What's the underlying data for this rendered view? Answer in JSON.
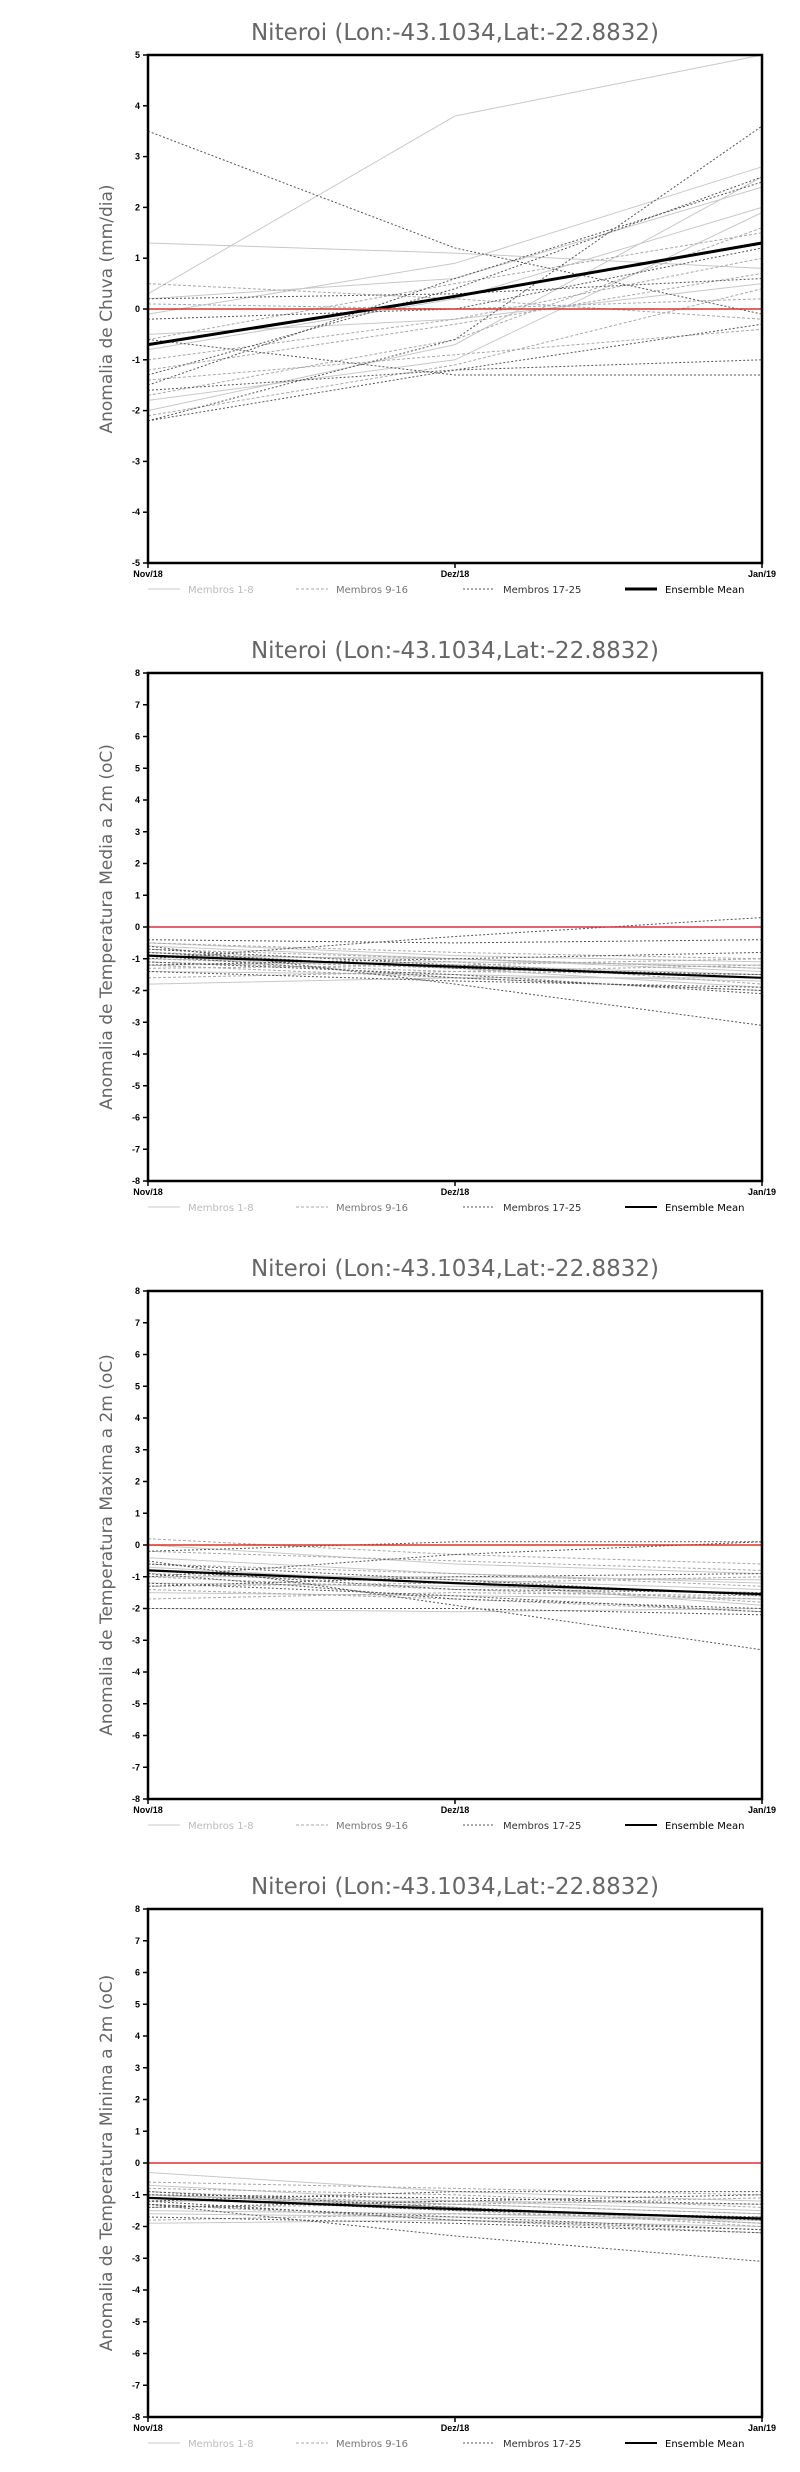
{
  "chart_data": [
    {
      "type": "line",
      "title": "Niteroi (Lon:-43.1034,Lat:-22.8832)",
      "ylabel": "Anomalia de Chuva (mm/dia)",
      "xlabel": "",
      "categories": [
        "Nov/18",
        "Dez/18",
        "Jan/19"
      ],
      "ylim": [
        -5,
        5
      ],
      "yticks": [
        "-5",
        "-4",
        "-3",
        "-2",
        "-1",
        "0",
        "1",
        "2",
        "3",
        "4",
        "5"
      ],
      "grid": false,
      "legend_position": "bottom",
      "legend": [
        "Membros 1-8",
        "Membros 9-16",
        "Membros 17-25",
        "Ensemble Mean"
      ],
      "series": [
        {
          "group": "Membros 1-8",
          "values": [
            0.3,
            3.8,
            5.0
          ]
        },
        {
          "group": "Membros 1-8",
          "values": [
            1.3,
            1.1,
            0.8
          ]
        },
        {
          "group": "Membros 1-8",
          "values": [
            -0.8,
            0.2,
            2.0
          ]
        },
        {
          "group": "Membros 1-8",
          "values": [
            -2.0,
            -0.7,
            2.6
          ]
        },
        {
          "group": "Membros 1-8",
          "values": [
            0.2,
            0.6,
            2.4
          ]
        },
        {
          "group": "Membros 1-8",
          "values": [
            -0.5,
            -0.2,
            0.5
          ]
        },
        {
          "group": "Membros 1-8",
          "values": [
            -1.8,
            -1.0,
            1.9
          ]
        },
        {
          "group": "Membros 1-8",
          "values": [
            -0.1,
            0.9,
            2.8
          ]
        },
        {
          "group": "Membros 9-16",
          "values": [
            -1.0,
            -0.2,
            1.0
          ]
        },
        {
          "group": "Membros 9-16",
          "values": [
            0.5,
            0.2,
            -0.2
          ]
        },
        {
          "group": "Membros 9-16",
          "values": [
            -1.7,
            -0.6,
            1.6
          ]
        },
        {
          "group": "Membros 9-16",
          "values": [
            -1.2,
            -0.3,
            0.7
          ]
        },
        {
          "group": "Membros 9-16",
          "values": [
            -0.6,
            0.5,
            1.5
          ]
        },
        {
          "group": "Membros 9-16",
          "values": [
            -2.1,
            -1.1,
            0.4
          ]
        },
        {
          "group": "Membros 9-16",
          "values": [
            -1.4,
            -0.9,
            -0.4
          ]
        },
        {
          "group": "Membros 9-16",
          "values": [
            0.1,
            0.0,
            0.2
          ]
        },
        {
          "group": "Membros 17-25",
          "values": [
            3.5,
            1.2,
            -0.1
          ]
        },
        {
          "group": "Membros 17-25",
          "values": [
            -2.2,
            -0.6,
            3.6
          ]
        },
        {
          "group": "Membros 17-25",
          "values": [
            -1.3,
            0.4,
            2.6
          ]
        },
        {
          "group": "Membros 17-25",
          "values": [
            0.2,
            0.3,
            0.6
          ]
        },
        {
          "group": "Membros 17-25",
          "values": [
            -1.6,
            -1.2,
            -1.0
          ]
        },
        {
          "group": "Membros 17-25",
          "values": [
            -1.5,
            0.6,
            2.5
          ]
        },
        {
          "group": "Membros 17-25",
          "values": [
            -0.2,
            0.0,
            1.2
          ]
        },
        {
          "group": "Membros 17-25",
          "values": [
            -2.2,
            -1.2,
            -0.3
          ]
        },
        {
          "group": "Membros 17-25",
          "values": [
            -0.6,
            -1.3,
            -1.3
          ]
        },
        {
          "group": "Ensemble Mean",
          "values": [
            -0.7,
            0.25,
            1.3
          ]
        }
      ],
      "reference_line": {
        "value": 0,
        "color": "#e03030"
      }
    },
    {
      "type": "line",
      "title": "Niteroi (Lon:-43.1034,Lat:-22.8832)",
      "ylabel": "Anomalia de Temperatura Media a 2m (oC)",
      "xlabel": "",
      "categories": [
        "Nov/18",
        "Dez/18",
        "Jan/19"
      ],
      "ylim": [
        -8,
        8
      ],
      "yticks": [
        "-8",
        "-7",
        "-6",
        "-5",
        "-4",
        "-3",
        "-2",
        "-1",
        "0",
        "1",
        "2",
        "3",
        "4",
        "5",
        "6",
        "7",
        "8"
      ],
      "grid": false,
      "legend_position": "bottom",
      "legend": [
        "Membros 1-8",
        "Membros 9-16",
        "Membros 17-25",
        "Ensemble Mean"
      ],
      "series": [
        {
          "group": "Membros 1-8",
          "values": [
            -0.6,
            -1.0,
            -1.3
          ]
        },
        {
          "group": "Membros 1-8",
          "values": [
            -1.0,
            -1.2,
            -1.5
          ]
        },
        {
          "group": "Membros 1-8",
          "values": [
            -1.8,
            -1.6,
            -1.6
          ]
        },
        {
          "group": "Membros 1-8",
          "values": [
            -0.8,
            -1.3,
            -1.9
          ]
        },
        {
          "group": "Membros 1-8",
          "values": [
            -1.2,
            -1.1,
            -1.2
          ]
        },
        {
          "group": "Membros 1-8",
          "values": [
            -0.5,
            -0.9,
            -1.1
          ]
        },
        {
          "group": "Membros 1-8",
          "values": [
            -1.4,
            -1.5,
            -1.7
          ]
        },
        {
          "group": "Membros 1-8",
          "values": [
            -0.9,
            -1.0,
            -1.4
          ]
        },
        {
          "group": "Membros 9-16",
          "values": [
            -0.7,
            -1.0,
            -1.3
          ]
        },
        {
          "group": "Membros 9-16",
          "values": [
            -1.6,
            -1.4,
            -1.5
          ]
        },
        {
          "group": "Membros 9-16",
          "values": [
            -1.0,
            -1.3,
            -1.6
          ]
        },
        {
          "group": "Membros 9-16",
          "values": [
            -1.3,
            -1.2,
            -1.0
          ]
        },
        {
          "group": "Membros 9-16",
          "values": [
            -0.8,
            -1.1,
            -1.8
          ]
        },
        {
          "group": "Membros 9-16",
          "values": [
            -1.1,
            -1.4,
            -1.2
          ]
        },
        {
          "group": "Membros 9-16",
          "values": [
            -0.5,
            -0.8,
            -1.0
          ]
        },
        {
          "group": "Membros 9-16",
          "values": [
            -1.2,
            -1.6,
            -2.0
          ]
        },
        {
          "group": "Membros 17-25",
          "values": [
            -0.6,
            -1.8,
            -3.1
          ]
        },
        {
          "group": "Membros 17-25",
          "values": [
            -1.0,
            -0.3,
            0.3
          ]
        },
        {
          "group": "Membros 17-25",
          "values": [
            -0.4,
            -0.5,
            -0.4
          ]
        },
        {
          "group": "Membros 17-25",
          "values": [
            -1.1,
            -1.5,
            -2.1
          ]
        },
        {
          "group": "Membros 17-25",
          "values": [
            -0.8,
            -1.3,
            -1.5
          ]
        },
        {
          "group": "Membros 17-25",
          "values": [
            -1.4,
            -1.7,
            -1.9
          ]
        },
        {
          "group": "Membros 17-25",
          "values": [
            -0.7,
            -1.2,
            -1.6
          ]
        },
        {
          "group": "Membros 17-25",
          "values": [
            -1.2,
            -1.0,
            -0.8
          ]
        },
        {
          "group": "Membros 17-25",
          "values": [
            -0.9,
            -1.6,
            -2.0
          ]
        },
        {
          "group": "Ensemble Mean",
          "values": [
            -0.9,
            -1.25,
            -1.6
          ]
        }
      ],
      "reference_line": {
        "value": 0,
        "color": "#e03030"
      }
    },
    {
      "type": "line",
      "title": "Niteroi (Lon:-43.1034,Lat:-22.8832)",
      "ylabel": "Anomalia de Temperatura Maxima a 2m (oC)",
      "xlabel": "",
      "categories": [
        "Nov/18",
        "Dez/18",
        "Jan/19"
      ],
      "ylim": [
        -8,
        8
      ],
      "yticks": [
        "-8",
        "-7",
        "-6",
        "-5",
        "-4",
        "-3",
        "-2",
        "-1",
        "0",
        "1",
        "2",
        "3",
        "4",
        "5",
        "6",
        "7",
        "8"
      ],
      "grid": false,
      "legend_position": "bottom",
      "legend": [
        "Membros 1-8",
        "Membros 9-16",
        "Membros 17-25",
        "Ensemble Mean"
      ],
      "series": [
        {
          "group": "Membros 1-8",
          "values": [
            -0.4,
            -0.9,
            -1.2
          ]
        },
        {
          "group": "Membros 1-8",
          "values": [
            -1.2,
            -1.3,
            -1.5
          ]
        },
        {
          "group": "Membros 1-8",
          "values": [
            -2.0,
            -2.1,
            -2.0
          ]
        },
        {
          "group": "Membros 1-8",
          "values": [
            -0.7,
            -1.2,
            -1.9
          ]
        },
        {
          "group": "Membros 1-8",
          "values": [
            -1.0,
            -1.0,
            -1.1
          ]
        },
        {
          "group": "Membros 1-8",
          "values": [
            0.0,
            -0.6,
            -0.9
          ]
        },
        {
          "group": "Membros 1-8",
          "values": [
            -1.5,
            -1.6,
            -1.7
          ]
        },
        {
          "group": "Membros 1-8",
          "values": [
            -0.8,
            -1.1,
            -1.4
          ]
        },
        {
          "group": "Membros 9-16",
          "values": [
            -0.6,
            -0.9,
            -1.3
          ]
        },
        {
          "group": "Membros 9-16",
          "values": [
            -1.7,
            -1.5,
            -1.6
          ]
        },
        {
          "group": "Membros 9-16",
          "values": [
            -1.0,
            -1.4,
            -1.7
          ]
        },
        {
          "group": "Membros 9-16",
          "values": [
            -1.3,
            -1.2,
            -1.0
          ]
        },
        {
          "group": "Membros 9-16",
          "values": [
            -0.9,
            -1.2,
            -1.8
          ]
        },
        {
          "group": "Membros 9-16",
          "values": [
            -0.2,
            -0.5,
            -0.8
          ]
        },
        {
          "group": "Membros 9-16",
          "values": [
            -1.4,
            -1.7,
            -2.1
          ]
        },
        {
          "group": "Membros 9-16",
          "values": [
            0.2,
            -0.3,
            -0.6
          ]
        },
        {
          "group": "Membros 17-25",
          "values": [
            -0.5,
            -1.9,
            -3.3
          ]
        },
        {
          "group": "Membros 17-25",
          "values": [
            -1.0,
            -0.3,
            0.1
          ]
        },
        {
          "group": "Membros 17-25",
          "values": [
            -0.2,
            0.1,
            0.1
          ]
        },
        {
          "group": "Membros 17-25",
          "values": [
            -1.2,
            -1.6,
            -2.1
          ]
        },
        {
          "group": "Membros 17-25",
          "values": [
            -0.8,
            -1.4,
            -1.5
          ]
        },
        {
          "group": "Membros 17-25",
          "values": [
            -2.0,
            -2.0,
            -2.2
          ]
        },
        {
          "group": "Membros 17-25",
          "values": [
            -0.6,
            -1.1,
            -1.6
          ]
        },
        {
          "group": "Membros 17-25",
          "values": [
            -1.3,
            -1.0,
            -0.9
          ]
        },
        {
          "group": "Membros 17-25",
          "values": [
            -0.9,
            -1.7,
            -2.0
          ]
        },
        {
          "group": "Ensemble Mean",
          "values": [
            -0.8,
            -1.2,
            -1.55
          ]
        }
      ],
      "reference_line": {
        "value": 0,
        "color": "#e03030"
      }
    },
    {
      "type": "line",
      "title": "Niteroi (Lon:-43.1034,Lat:-22.8832)",
      "ylabel": "Anomalia de Temperatura Minima a 2m (oC)",
      "xlabel": "",
      "categories": [
        "Nov/18",
        "Dez/18",
        "Jan/19"
      ],
      "ylim": [
        -8,
        8
      ],
      "yticks": [
        "-8",
        "-7",
        "-6",
        "-5",
        "-4",
        "-3",
        "-2",
        "-1",
        "0",
        "1",
        "2",
        "3",
        "4",
        "5",
        "6",
        "7",
        "8"
      ],
      "grid": false,
      "legend_position": "bottom",
      "legend": [
        "Membros 1-8",
        "Membros 9-16",
        "Membros 17-25",
        "Ensemble Mean"
      ],
      "series": [
        {
          "group": "Membros 1-8",
          "values": [
            -0.7,
            -1.2,
            -1.5
          ]
        },
        {
          "group": "Membros 1-8",
          "values": [
            -1.5,
            -1.6,
            -1.8
          ]
        },
        {
          "group": "Membros 1-8",
          "values": [
            -1.9,
            -1.8,
            -2.0
          ]
        },
        {
          "group": "Membros 1-8",
          "values": [
            -1.0,
            -1.4,
            -1.9
          ]
        },
        {
          "group": "Membros 1-8",
          "values": [
            -1.2,
            -1.2,
            -1.3
          ]
        },
        {
          "group": "Membros 1-8",
          "values": [
            -0.3,
            -0.9,
            -1.2
          ]
        },
        {
          "group": "Membros 1-8",
          "values": [
            -1.6,
            -1.7,
            -1.8
          ]
        },
        {
          "group": "Membros 1-8",
          "values": [
            -1.0,
            -1.3,
            -1.6
          ]
        },
        {
          "group": "Membros 9-16",
          "values": [
            -0.9,
            -1.3,
            -1.6
          ]
        },
        {
          "group": "Membros 9-16",
          "values": [
            -1.8,
            -1.6,
            -1.7
          ]
        },
        {
          "group": "Membros 9-16",
          "values": [
            -1.1,
            -1.5,
            -1.9
          ]
        },
        {
          "group": "Membros 9-16",
          "values": [
            -1.4,
            -1.3,
            -1.1
          ]
        },
        {
          "group": "Membros 9-16",
          "values": [
            -1.0,
            -1.4,
            -2.0
          ]
        },
        {
          "group": "Membros 9-16",
          "values": [
            -0.6,
            -0.8,
            -1.0
          ]
        },
        {
          "group": "Membros 9-16",
          "values": [
            -1.3,
            -1.8,
            -2.2
          ]
        },
        {
          "group": "Membros 9-16",
          "values": [
            -0.8,
            -1.0,
            -1.4
          ]
        },
        {
          "group": "Membros 17-25",
          "values": [
            -1.3,
            -2.3,
            -3.1
          ]
        },
        {
          "group": "Membros 17-25",
          "values": [
            -1.2,
            -0.9,
            -0.9
          ]
        },
        {
          "group": "Membros 17-25",
          "values": [
            -1.0,
            -1.1,
            -1.3
          ]
        },
        {
          "group": "Membros 17-25",
          "values": [
            -1.3,
            -1.7,
            -2.1
          ]
        },
        {
          "group": "Membros 17-25",
          "values": [
            -1.1,
            -1.5,
            -1.7
          ]
        },
        {
          "group": "Membros 17-25",
          "values": [
            -1.7,
            -1.9,
            -2.2
          ]
        },
        {
          "group": "Membros 17-25",
          "values": [
            -0.9,
            -1.4,
            -1.8
          ]
        },
        {
          "group": "Membros 17-25",
          "values": [
            -1.4,
            -1.2,
            -1.0
          ]
        },
        {
          "group": "Membros 17-25",
          "values": [
            -1.2,
            -1.8,
            -2.1
          ]
        },
        {
          "group": "Ensemble Mean",
          "values": [
            -1.1,
            -1.45,
            -1.75
          ]
        }
      ],
      "reference_line": {
        "value": 0,
        "color": "#e03030"
      }
    }
  ],
  "styles": {
    "Membros 1-8": {
      "color": "#c8c8c8",
      "dash": "",
      "legend_text_color": "#bbbbbb"
    },
    "Membros 9-16": {
      "color": "#a8a8a8",
      "dash": "3,2",
      "legend_text_color": "#777777"
    },
    "Membros 17-25": {
      "color": "#555555",
      "dash": "2,2",
      "legend_text_color": "#333333"
    },
    "Ensemble Mean": {
      "color": "#000000",
      "dash": "",
      "legend_text_color": "#000000"
    }
  }
}
